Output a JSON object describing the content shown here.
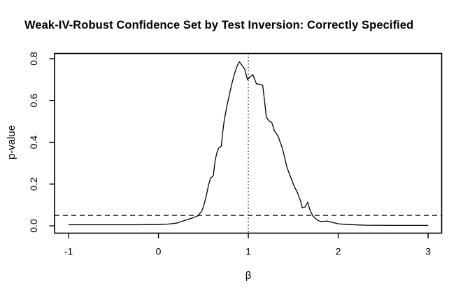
{
  "title": "Weak-IV-Robust Confidence Set by Test Inversion: Correctly Specified",
  "colors": {
    "foreground": "#000000",
    "background": "#ffffff"
  },
  "chart_data": {
    "type": "line",
    "title": "Weak-IV-Robust Confidence Set by Test Inversion: Correctly Specified",
    "xlabel": "β",
    "ylabel": "p-value",
    "xlim": [
      -1.156,
      3.151
    ],
    "ylim": [
      -0.035,
      0.825
    ],
    "grid": false,
    "legend": false,
    "x_ticks": [
      {
        "value": -1,
        "label": "-1"
      },
      {
        "value": 0,
        "label": "0"
      },
      {
        "value": 1,
        "label": "1"
      },
      {
        "value": 2,
        "label": "2"
      },
      {
        "value": 3,
        "label": "3"
      }
    ],
    "y_ticks": [
      {
        "value": 0.0,
        "label": "0.0"
      },
      {
        "value": 0.2,
        "label": "0.2"
      },
      {
        "value": 0.4,
        "label": "0.4"
      },
      {
        "value": 0.6,
        "label": "0.6"
      },
      {
        "value": 0.8,
        "label": "0.8"
      }
    ],
    "reference_lines": [
      {
        "orientation": "horizontal",
        "value": 0.05,
        "style": "dashed"
      },
      {
        "orientation": "vertical",
        "value": 1,
        "style": "dotted"
      }
    ],
    "series": [
      {
        "name": "p-value curve",
        "style": "solid",
        "points": [
          [
            -1.0,
            0.005
          ],
          [
            -0.75,
            0.005
          ],
          [
            -0.5,
            0.005
          ],
          [
            -0.25,
            0.005
          ],
          [
            0.0,
            0.006
          ],
          [
            0.1,
            0.008
          ],
          [
            0.2,
            0.013
          ],
          [
            0.3,
            0.027
          ],
          [
            0.38,
            0.038
          ],
          [
            0.44,
            0.048
          ],
          [
            0.48,
            0.07
          ],
          [
            0.5,
            0.09
          ],
          [
            0.53,
            0.14
          ],
          [
            0.56,
            0.2
          ],
          [
            0.58,
            0.228
          ],
          [
            0.61,
            0.24
          ],
          [
            0.63,
            0.31
          ],
          [
            0.65,
            0.35
          ],
          [
            0.67,
            0.372
          ],
          [
            0.7,
            0.382
          ],
          [
            0.71,
            0.43
          ],
          [
            0.73,
            0.5
          ],
          [
            0.76,
            0.57
          ],
          [
            0.79,
            0.63
          ],
          [
            0.82,
            0.685
          ],
          [
            0.84,
            0.72
          ],
          [
            0.87,
            0.76
          ],
          [
            0.9,
            0.786
          ],
          [
            0.93,
            0.768
          ],
          [
            0.96,
            0.75
          ],
          [
            0.99,
            0.7
          ],
          [
            1.02,
            0.713
          ],
          [
            1.05,
            0.724
          ],
          [
            1.09,
            0.68
          ],
          [
            1.13,
            0.677
          ],
          [
            1.16,
            0.672
          ],
          [
            1.18,
            0.6
          ],
          [
            1.2,
            0.52
          ],
          [
            1.23,
            0.502
          ],
          [
            1.26,
            0.495
          ],
          [
            1.29,
            0.455
          ],
          [
            1.33,
            0.43
          ],
          [
            1.38,
            0.37
          ],
          [
            1.43,
            0.28
          ],
          [
            1.47,
            0.233
          ],
          [
            1.51,
            0.19
          ],
          [
            1.55,
            0.155
          ],
          [
            1.58,
            0.12
          ],
          [
            1.6,
            0.086
          ],
          [
            1.63,
            0.09
          ],
          [
            1.66,
            0.113
          ],
          [
            1.69,
            0.07
          ],
          [
            1.72,
            0.047
          ],
          [
            1.76,
            0.03
          ],
          [
            1.8,
            0.021
          ],
          [
            1.85,
            0.022
          ],
          [
            1.88,
            0.023
          ],
          [
            1.93,
            0.017
          ],
          [
            2.0,
            0.01
          ],
          [
            2.1,
            0.006
          ],
          [
            2.3,
            0.003
          ],
          [
            2.6,
            0.002
          ],
          [
            3.0,
            0.002
          ]
        ]
      }
    ]
  }
}
